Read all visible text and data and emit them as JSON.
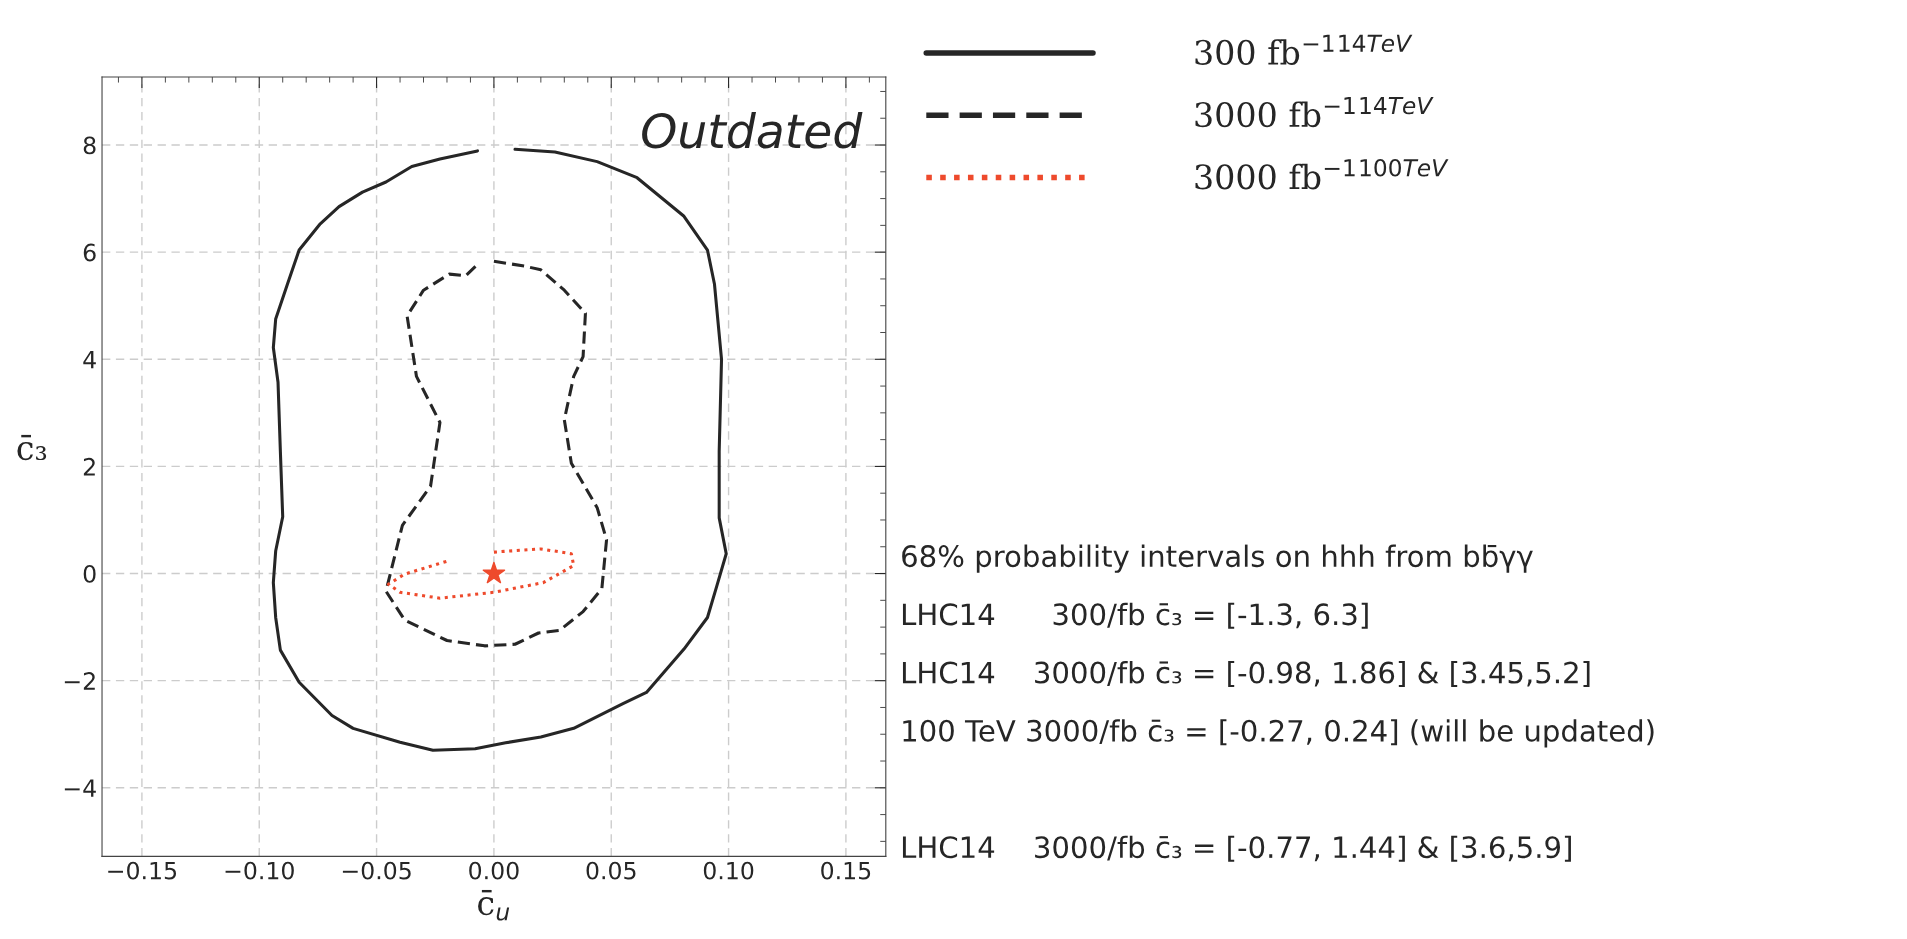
{
  "chart_data": {
    "type": "line",
    "xlabel": "c̄$_{u}$",
    "ylabel": "c̄₃",
    "xlim": [
      -0.167,
      0.167
    ],
    "ylim": [
      -5.28,
      9.27
    ],
    "xticks": [
      {
        "value": -0.15,
        "label": "−0.15"
      },
      {
        "value": -0.1,
        "label": "−0.10"
      },
      {
        "value": -0.05,
        "label": "−0.05"
      },
      {
        "value": 0,
        "label": "0.00"
      },
      {
        "value": 0.05,
        "label": "0.05"
      },
      {
        "value": 0.1,
        "label": "0.10"
      },
      {
        "value": 0.15,
        "label": "0.15"
      }
    ],
    "yticks": [
      {
        "value": -4,
        "label": "−4"
      },
      {
        "value": -2,
        "label": "−2"
      },
      0,
      2,
      4,
      6,
      8
    ],
    "grid": true,
    "legend": "top right",
    "series": [
      {
        "name": "300 fb$^{−1}$$^{14TeV}$",
        "color": "#262626",
        "line_style": "solid",
        "marker": "none",
        "x": [
          0.009,
          0.026,
          0.044,
          0.061,
          0.081,
          0.091,
          0.094,
          0.097,
          0.096,
          0.096,
          0.099,
          0.095,
          0.091,
          0.081,
          0.065,
          0.055,
          0.034,
          0.02,
          0.005,
          -0.008,
          -0.026,
          -0.04,
          -0.06,
          -0.069,
          -0.083,
          -0.091,
          -0.093,
          -0.094,
          -0.093,
          -0.09,
          -0.091,
          -0.092,
          -0.094,
          -0.093,
          -0.088,
          -0.083,
          -0.074,
          -0.066,
          -0.056,
          -0.046,
          -0.035,
          -0.023,
          -0.007
        ],
        "values": [
          7.92,
          7.87,
          7.69,
          7.39,
          6.67,
          6.04,
          5.4,
          4.0,
          2.28,
          1.04,
          0.37,
          -0.23,
          -0.82,
          -1.41,
          -2.22,
          -2.43,
          -2.89,
          -3.05,
          -3.16,
          -3.27,
          -3.3,
          -3.15,
          -2.89,
          -2.65,
          -2.03,
          -1.43,
          -0.82,
          -0.17,
          0.42,
          1.06,
          2.28,
          3.57,
          4.22,
          4.75,
          5.4,
          6.04,
          6.53,
          6.85,
          7.12,
          7.31,
          7.6,
          7.74,
          7.89
        ]
      },
      {
        "name": "3000 fb$^{−1}$$^{14TeV}$",
        "color": "#262626",
        "line_style": "dashed",
        "marker": "none",
        "x": [
          0.0,
          0.013,
          0.02,
          0.03,
          0.039,
          0.038,
          0.034,
          0.03,
          0.033,
          0.044,
          0.048,
          0.046,
          0.038,
          0.028,
          0.019,
          0.009,
          -0.004,
          -0.02,
          -0.038,
          -0.046,
          -0.043,
          -0.039,
          -0.027,
          -0.023,
          -0.033,
          -0.037,
          -0.03,
          -0.019,
          -0.012,
          -0.007
        ],
        "values": [
          5.83,
          5.74,
          5.67,
          5.29,
          4.86,
          4.05,
          3.68,
          2.87,
          2.06,
          1.23,
          0.63,
          -0.28,
          -0.71,
          -1.06,
          -1.11,
          -1.32,
          -1.35,
          -1.25,
          -0.87,
          -0.33,
          0.2,
          0.9,
          1.63,
          2.82,
          3.68,
          4.81,
          5.29,
          5.59,
          5.56,
          5.77
        ]
      },
      {
        "name": "3000 fb$^{−1}$$^{100TeV}$",
        "color": "#ee4a2c",
        "line_style": "dotted",
        "marker": "none",
        "x": [
          0.0,
          0.02,
          0.033,
          0.034,
          0.021,
          0.0,
          -0.023,
          -0.04,
          -0.045,
          -0.038,
          -0.02
        ],
        "values": [
          0.4,
          0.46,
          0.37,
          0.15,
          -0.17,
          -0.35,
          -0.46,
          -0.35,
          -0.2,
          -0.01,
          0.23
        ]
      },
      {
        "type": "scatter",
        "color": "#ee4a2c",
        "marker": "star",
        "x": [
          0.0
        ],
        "values": [
          0.0
        ]
      }
    ],
    "annotations": [
      "Outdated",
      "68% probability intervals on hhh from bb̄γγ",
      "LHC14      300/fb c̄₃ = [-1.3, 6.3]",
      "LHC14    3000/fb c̄₃ = [-0.98, 1.86] & [3.45,5.2]",
      "100 TeV 3000/fb c̄₃ = [-0.27, 0.24] (will be updated)",
      "LHC14    3000/fb c̄₃ = [-0.77, 1.44] & [3.6,5.9]"
    ]
  }
}
